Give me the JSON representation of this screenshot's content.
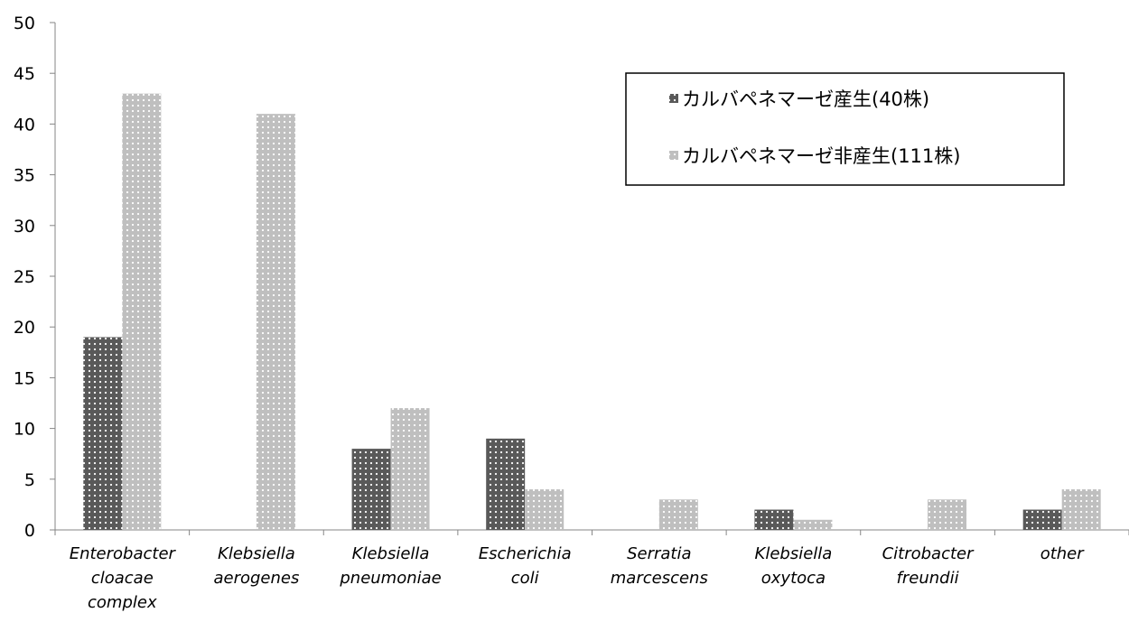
{
  "chart_data": {
    "type": "bar",
    "categories": [
      [
        "Enterobacter",
        "cloacae",
        "complex"
      ],
      [
        "Klebsiella",
        "aerogenes"
      ],
      [
        "Klebsiella",
        "pneumoniae"
      ],
      [
        "Escherichia",
        "coli"
      ],
      [
        "Serratia",
        "marcescens"
      ],
      [
        "Klebsiella",
        "oxytoca"
      ],
      [
        "Citrobacter",
        "freundii"
      ],
      [
        "other"
      ]
    ],
    "series": [
      {
        "name": "カルバペネマーゼ産生(40株)",
        "values": [
          19,
          0,
          8,
          9,
          0,
          2,
          0,
          2
        ],
        "color": "#595959"
      },
      {
        "name": "カルバペネマーゼ非産生(111株)",
        "values": [
          43,
          41,
          12,
          4,
          3,
          1,
          3,
          4
        ],
        "color": "#bfbfbf"
      }
    ],
    "ylim": [
      0,
      50
    ],
    "yticks": [
      0,
      5,
      10,
      15,
      20,
      25,
      30,
      35,
      40,
      45,
      50
    ],
    "grid": false,
    "legend_position": "top-right"
  }
}
